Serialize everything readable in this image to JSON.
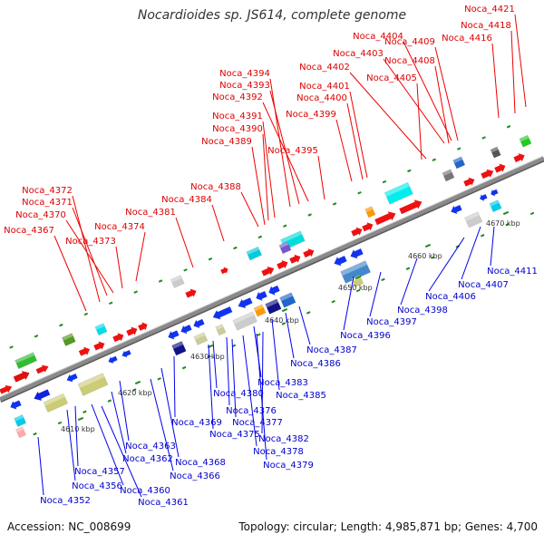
{
  "title": "Nocardioides sp. JS614, complete genome",
  "footer": {
    "accession": "Accession: NC_008699",
    "summary": "Topology: circular; Length: 4,985,871 bp; Genes: 4,700"
  },
  "colors": {
    "backbone": "#8a8a8a",
    "top_label": "#dd0000",
    "bottom_label": "#0000cc",
    "tick": "#228822",
    "scale_text": "#333333"
  },
  "scale_labels": [
    "4610 kbp",
    "4620 kbp",
    "4630 kbp",
    "4640 kbp",
    "4650 kbp",
    "4660 kbp",
    "4670 kbp"
  ],
  "top_labels": [
    "Noca_4421",
    "Noca_4418",
    "Noca_4416",
    "Noca_4404",
    "Noca_4409",
    "Noca_4403",
    "Noca_4408",
    "Noca_4402",
    "Noca_4401",
    "Noca_4405",
    "Noca_4400",
    "Noca_4399",
    "Noca_4394",
    "Noca_4393",
    "Noca_4392",
    "Noca_4391",
    "Noca_4390",
    "Noca_4389",
    "Noca_4395",
    "Noca_4388",
    "Noca_4384",
    "Noca_4381",
    "Noca_4372",
    "Noca_4371",
    "Noca_4370",
    "Noca_4374",
    "Noca_4367",
    "Noca_4373"
  ],
  "bottom_labels": [
    "Noca_4411",
    "Noca_4407",
    "Noca_4406",
    "Noca_4398",
    "Noca_4397",
    "Noca_4396",
    "Noca_4387",
    "Noca_4386",
    "Noca_4383",
    "Noca_4385",
    "Noca_4380",
    "Noca_4376",
    "Noca_4377",
    "Noca_4369",
    "Noca_4375",
    "Noca_4382",
    "Noca_4378",
    "Noca_4379",
    "Noca_4363",
    "Noca_4362",
    "Noca_4368",
    "Noca_4366",
    "Noca_4357",
    "Noca_4356",
    "Noca_4360",
    "Noca_4352",
    "Noca_4361"
  ]
}
